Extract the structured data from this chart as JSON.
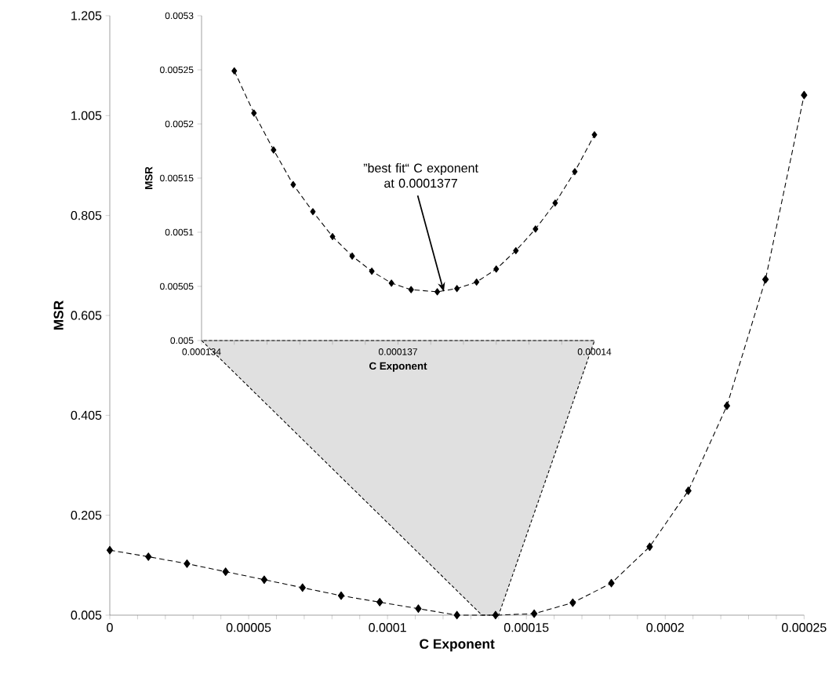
{
  "chart_data": [
    {
      "type": "line",
      "xlabel": "C Exponent",
      "ylabel": "MSR",
      "marker": "diamond",
      "line_style": "dashed",
      "x": [
        0,
        1.39e-05,
        2.78e-05,
        4.17e-05,
        5.56e-05,
        6.94e-05,
        8.33e-05,
        9.72e-05,
        0.0001111,
        0.000125,
        0.0001389,
        0.0001528,
        0.0001667,
        0.0001806,
        0.0001944,
        0.0002083,
        0.0002222,
        0.0002361,
        0.00025
      ],
      "series": [
        {
          "color": "#000000",
          "values": [
            0.135,
            0.122,
            0.108,
            0.092,
            0.076,
            0.06,
            0.044,
            0.031,
            0.018,
            0.005,
            0.005,
            0.008,
            0.03,
            0.069,
            0.142,
            0.254,
            0.424,
            0.677,
            1.046
          ]
        }
      ],
      "xlim": [
        0,
        0.00025
      ],
      "ylim": [
        0.005,
        1.205
      ],
      "xticks": [
        {
          "value": 0,
          "label": "0"
        },
        {
          "value": 1e-05,
          "label": null
        },
        {
          "value": 2e-05,
          "label": null
        },
        {
          "value": 3e-05,
          "label": null
        },
        {
          "value": 4e-05,
          "label": null
        },
        {
          "value": 5e-05,
          "label": "0.00005"
        },
        {
          "value": 6e-05,
          "label": null
        },
        {
          "value": 7e-05,
          "label": null
        },
        {
          "value": 8e-05,
          "label": null
        },
        {
          "value": 9e-05,
          "label": null
        },
        {
          "value": 0.0001,
          "label": "0.0001"
        },
        {
          "value": 0.00011,
          "label": null
        },
        {
          "value": 0.00012,
          "label": null
        },
        {
          "value": 0.00013,
          "label": null
        },
        {
          "value": 0.00014,
          "label": null
        },
        {
          "value": 0.00015,
          "label": "0.00015"
        },
        {
          "value": 0.00016,
          "label": null
        },
        {
          "value": 0.00017,
          "label": null
        },
        {
          "value": 0.00018,
          "label": null
        },
        {
          "value": 0.00019,
          "label": null
        },
        {
          "value": 0.0002,
          "label": "0.0002"
        },
        {
          "value": 0.00021,
          "label": null
        },
        {
          "value": 0.00022,
          "label": null
        },
        {
          "value": 0.00023,
          "label": null
        },
        {
          "value": 0.00024,
          "label": null
        },
        {
          "value": 0.00025,
          "label": "0.00025"
        }
      ],
      "yticks": [
        {
          "value": 0.005,
          "label": "0.005"
        },
        {
          "value": 0.205,
          "label": "0.205"
        },
        {
          "value": 0.405,
          "label": "0.405"
        },
        {
          "value": 0.605,
          "label": "0.605"
        },
        {
          "value": 0.805,
          "label": "0.805"
        },
        {
          "value": 1.005,
          "label": "1.005"
        },
        {
          "value": 1.205,
          "label": "1.205"
        }
      ]
    },
    {
      "type": "line",
      "xlabel": "C Exponent",
      "ylabel": "MSR",
      "marker": "diamond",
      "line_style": "dashed",
      "x": [
        0.0001345,
        0.0001348,
        0.0001351,
        0.0001354,
        0.0001357,
        0.000136,
        0.0001363,
        0.0001366,
        0.0001369,
        0.0001372,
        0.0001376,
        0.0001379,
        0.0001382,
        0.0001385,
        0.0001388,
        0.0001391,
        0.0001394,
        0.0001397,
        0.00014
      ],
      "series": [
        {
          "color": "#000000",
          "values": [
            0.005249,
            0.00521,
            0.005176,
            0.005144,
            0.005119,
            0.005096,
            0.005078,
            0.005064,
            0.005053,
            0.005047,
            0.005045,
            0.005048,
            0.005054,
            0.005066,
            0.005083,
            0.005103,
            0.005127,
            0.005156,
            0.00519
          ]
        }
      ],
      "xlim": [
        0.000134,
        0.00014
      ],
      "ylim": [
        0.005,
        0.0053
      ],
      "xticks": [
        {
          "value": 0.000134,
          "label": "0.000134"
        },
        {
          "value": 0.0001345,
          "label": null
        },
        {
          "value": 0.000135,
          "label": null
        },
        {
          "value": 0.0001355,
          "label": null
        },
        {
          "value": 0.000136,
          "label": null
        },
        {
          "value": 0.0001365,
          "label": null
        },
        {
          "value": 0.000137,
          "label": "0.000137"
        },
        {
          "value": 0.0001375,
          "label": null
        },
        {
          "value": 0.000138,
          "label": null
        },
        {
          "value": 0.0001385,
          "label": null
        },
        {
          "value": 0.000139,
          "label": null
        },
        {
          "value": 0.0001395,
          "label": null
        },
        {
          "value": 0.00014,
          "label": "0.00014"
        }
      ],
      "yticks": [
        {
          "value": 0.005,
          "label": "0.005"
        },
        {
          "value": 0.00505,
          "label": "0.00505"
        },
        {
          "value": 0.0051,
          "label": "0.0051"
        },
        {
          "value": 0.00515,
          "label": "0.00515"
        },
        {
          "value": 0.0052,
          "label": "0.0052"
        },
        {
          "value": 0.00525,
          "label": "0.00525"
        },
        {
          "value": 0.0053,
          "label": "0.0053"
        }
      ],
      "annotations": [
        {
          "text": "”best fit“ C exponent at 0.0001377",
          "x": 0.0001377,
          "y": 0.005045
        }
      ]
    }
  ]
}
